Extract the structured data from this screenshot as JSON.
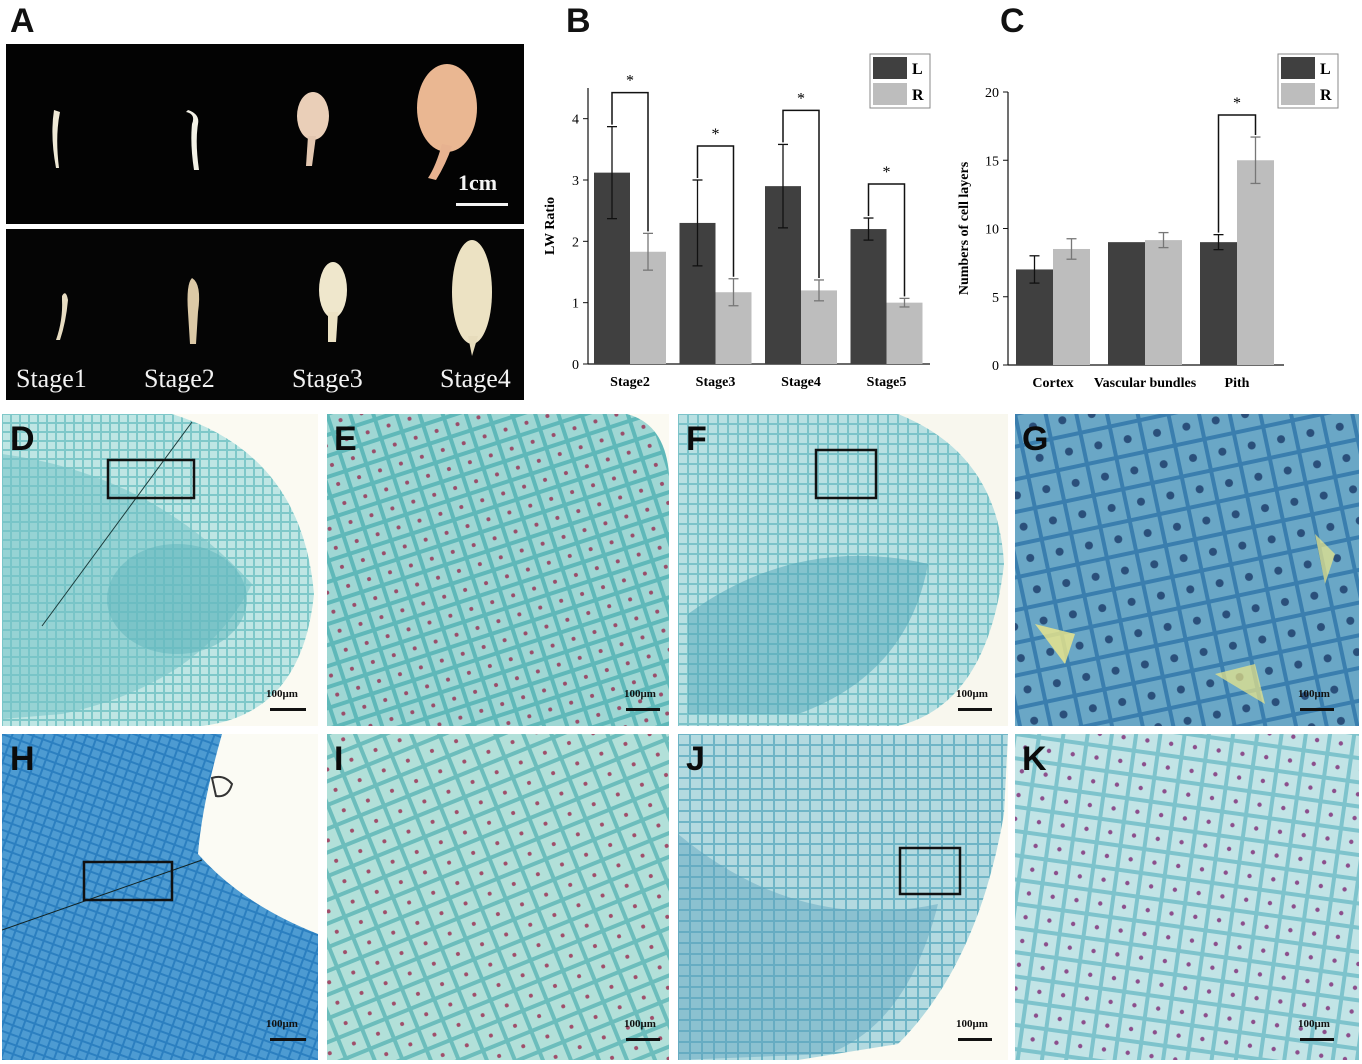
{
  "panels": {
    "A": "A",
    "B": "B",
    "C": "C",
    "D": "D",
    "E": "E",
    "F": "F",
    "G": "G",
    "H": "H",
    "I": "I",
    "J": "J",
    "K": "K"
  },
  "photo_a": {
    "scale_label": "1cm",
    "stage_labels": [
      "Stage1",
      "Stage2",
      "Stage3",
      "Stage4"
    ]
  },
  "micrographs": {
    "scale_label": "100μm"
  },
  "colors": {
    "series_L": "#404040",
    "series_R": "#bdbdbd",
    "tissue_light": "#8ccfd0",
    "tissue_dark": "#2f86c4"
  },
  "chart_data": [
    {
      "type": "bar",
      "title": "",
      "xlabel": "",
      "ylabel": "LW Ratio",
      "ylim": [
        0,
        4.5
      ],
      "yticks": [
        0,
        1,
        2,
        3,
        4
      ],
      "categories": [
        "Stage2",
        "Stage3",
        "Stage4",
        "Stage5"
      ],
      "series": [
        {
          "name": "L",
          "values": [
            3.12,
            2.3,
            2.9,
            2.2
          ],
          "errors": [
            0.75,
            0.7,
            0.68,
            0.18
          ]
        },
        {
          "name": "R",
          "values": [
            1.83,
            1.17,
            1.2,
            1.0
          ],
          "errors": [
            0.3,
            0.22,
            0.17,
            0.07
          ]
        }
      ],
      "significance": [
        "*",
        "*",
        "*",
        "*"
      ],
      "legend_position": "top-right"
    },
    {
      "type": "bar",
      "title": "",
      "xlabel": "",
      "ylabel": "Numbers of cell layers",
      "ylim": [
        0,
        20
      ],
      "yticks": [
        0,
        5,
        10,
        15,
        20
      ],
      "categories": [
        "Cortex",
        "Vascular bundles",
        "Pith"
      ],
      "series": [
        {
          "name": "L",
          "values": [
            7.0,
            9.0,
            9.0
          ],
          "errors": [
            1.0,
            0.0,
            0.55
          ]
        },
        {
          "name": "R",
          "values": [
            8.5,
            9.15,
            15.0
          ],
          "errors": [
            0.75,
            0.55,
            1.7
          ]
        }
      ],
      "significance": [
        "",
        "",
        "*"
      ],
      "legend_position": "top-right"
    }
  ]
}
